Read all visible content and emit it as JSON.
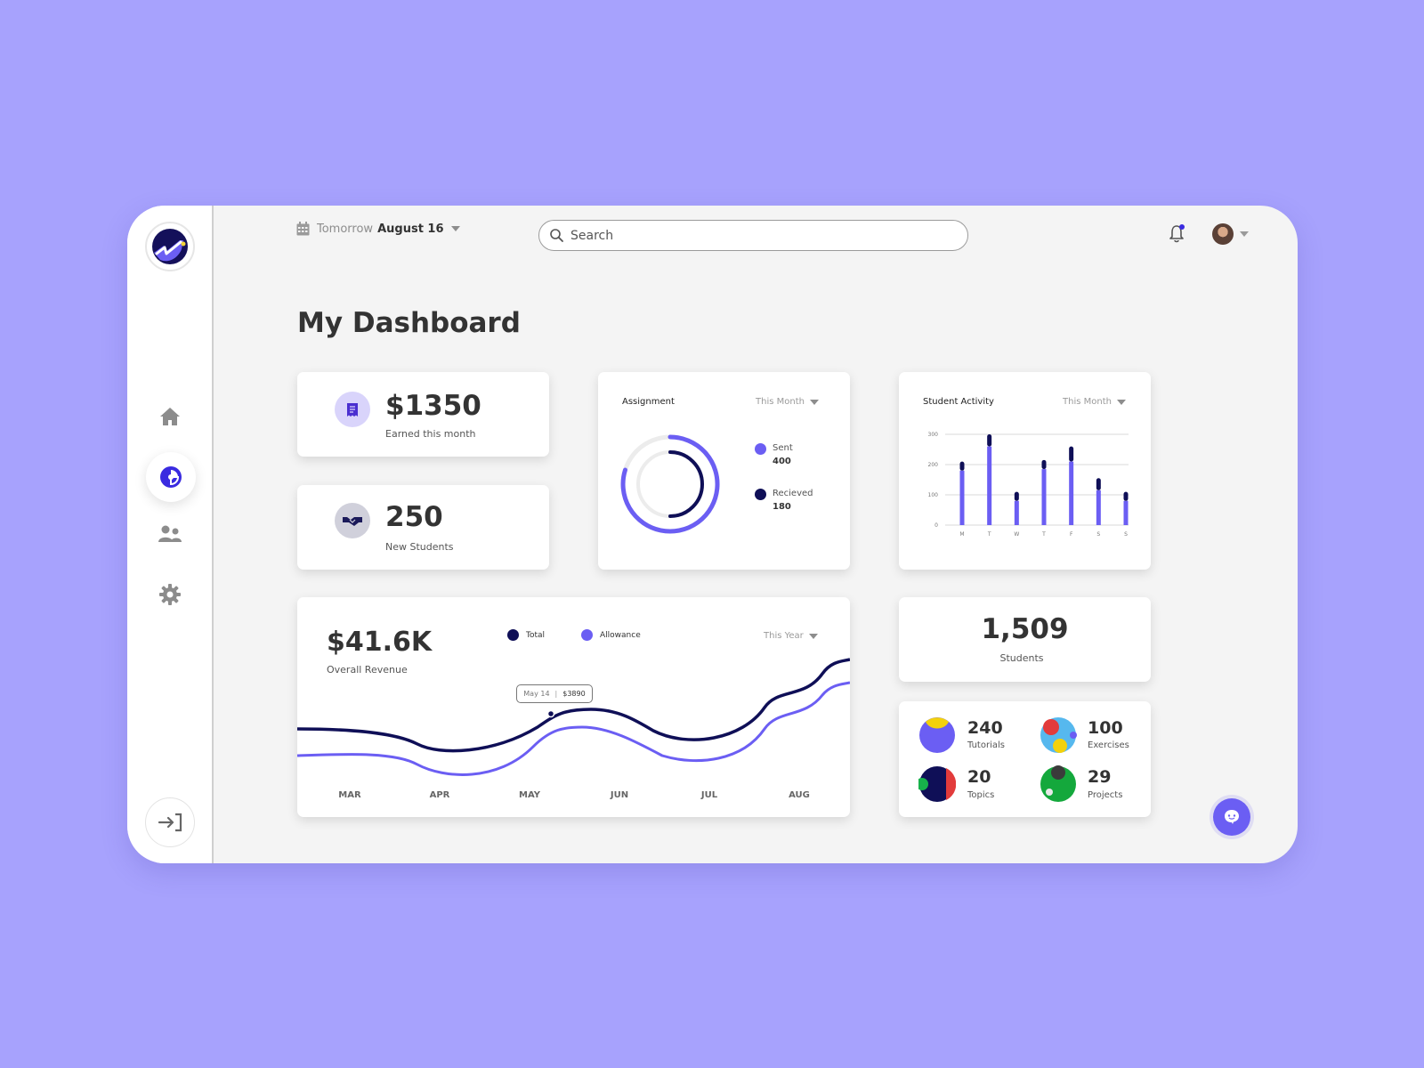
{
  "header": {
    "date_prefix": "Tomorrow",
    "date_value": "August 16",
    "search_placeholder": "Search"
  },
  "page_title": "My Dashboard",
  "stats": {
    "earned_value": "$1350",
    "earned_label": "Earned this month",
    "students_value": "250",
    "students_label": "New Students"
  },
  "assignment": {
    "title": "Assignment",
    "filter": "This Month",
    "legend": [
      {
        "label": "Sent",
        "value": "400",
        "color": "#6b5ef3"
      },
      {
        "label": "Recieved",
        "value": "180",
        "color": "#0f0f57"
      }
    ]
  },
  "activity": {
    "title": "Student Activity",
    "filter": "This Month"
  },
  "revenue": {
    "value": "$41.6K",
    "label": "Overall Revenue",
    "filter": "This Year",
    "legend": [
      {
        "label": "Total",
        "color": "#0f0f57"
      },
      {
        "label": "Allowance",
        "color": "#6b5ef3"
      }
    ],
    "tooltip_date": "May 14",
    "tooltip_value": "$3890"
  },
  "total_students": {
    "value": "1,509",
    "label": "Students"
  },
  "categories": [
    {
      "value": "240",
      "label": "Tutorials"
    },
    {
      "value": "100",
      "label": "Exercises"
    },
    {
      "value": "20",
      "label": "Topics"
    },
    {
      "value": "29",
      "label": "Projects"
    }
  ],
  "chart_data": [
    {
      "type": "bar",
      "title": "Student Activity",
      "categories": [
        "M",
        "T",
        "W",
        "T",
        "F",
        "S",
        "S"
      ],
      "yticks": [
        "300",
        "200",
        "100",
        "0"
      ],
      "ylim": [
        0,
        300
      ],
      "series": [
        {
          "values": [
            180,
            260,
            80,
            185,
            210,
            115,
            80
          ],
          "color": "#6b5ef3"
        },
        {
          "values": [
            30,
            40,
            30,
            30,
            50,
            40,
            30
          ],
          "color": "#0f0f57"
        }
      ],
      "stacked": true,
      "grid": true
    },
    {
      "type": "line",
      "categories": [
        "MAR",
        "APR",
        "MAY",
        "JUN",
        "JUL",
        "AUG"
      ],
      "series": [
        {
          "name": "Total",
          "color": "#0f0f57"
        },
        {
          "name": "Allowance",
          "color": "#6b5ef3"
        }
      ]
    }
  ],
  "colors": {
    "accent": "#6b5ef3",
    "dark": "#0f0f57",
    "background": "#a7a2fd"
  }
}
